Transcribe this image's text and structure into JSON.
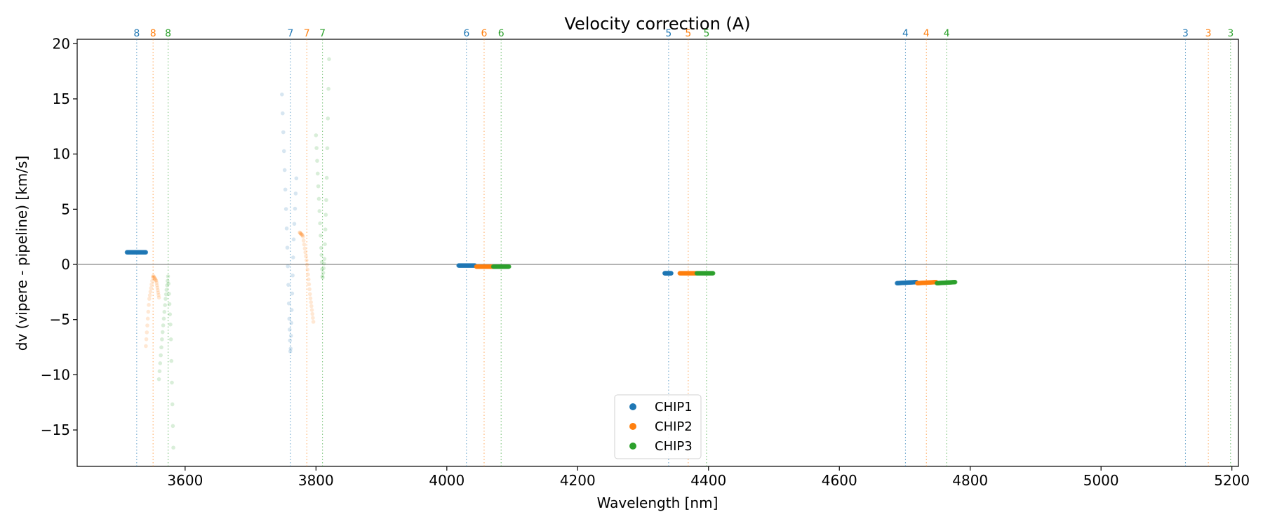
{
  "chart_data": {
    "type": "scatter",
    "title": "Velocity correction (A)",
    "xlabel": "Wavelength [nm]",
    "ylabel": "dv (vipere - pipeline) [km/s]",
    "xlim": [
      3435,
      5210
    ],
    "ylim": [
      -18.3,
      20.4
    ],
    "xticks": [
      3600,
      3800,
      4000,
      4200,
      4400,
      4600,
      4800,
      5000,
      5200
    ],
    "yticks": [
      20,
      15,
      10,
      5,
      0,
      -5,
      -10,
      -15
    ],
    "hline_y": 0,
    "legend_position": "lower center",
    "series": [
      {
        "name": "CHIP1",
        "color": "#1f77b4",
        "order_markers": [
          {
            "order": "8",
            "x": 3526
          },
          {
            "order": "7",
            "x": 3761
          },
          {
            "order": "6",
            "x": 4030
          },
          {
            "order": "5",
            "x": 4339
          },
          {
            "order": "4",
            "x": 4701
          },
          {
            "order": "3",
            "x": 5129
          }
        ],
        "segments": [
          {
            "x": [
              3511,
              3540
            ],
            "y": [
              1.1,
              1.1
            ],
            "style": "dense"
          },
          {
            "x": [
              3748,
              3752,
              3756,
              3759,
              3761,
              3763,
              3766,
              3770
            ],
            "y": [
              15.4,
              8.8,
              2.0,
              -4.5,
              -8.3,
              -3.8,
              2.5,
              7.8
            ],
            "style": "faint"
          },
          {
            "x": [
              4018,
              4043
            ],
            "y": [
              -0.1,
              -0.1
            ],
            "style": "dense"
          },
          {
            "x": [
              4333,
              4343
            ],
            "y": [
              -0.8,
              -0.8
            ],
            "style": "dense"
          },
          {
            "x": [
              4688,
              4718
            ],
            "y": [
              -1.7,
              -1.6
            ],
            "style": "dense"
          }
        ]
      },
      {
        "name": "CHIP2",
        "color": "#ff7f0e",
        "order_markers": [
          {
            "order": "8",
            "x": 3551
          },
          {
            "order": "7",
            "x": 3786
          },
          {
            "order": "6",
            "x": 4057
          },
          {
            "order": "5",
            "x": 4369
          },
          {
            "order": "4",
            "x": 4733
          },
          {
            "order": "3",
            "x": 5164
          }
        ],
        "segments": [
          {
            "x": [
              3540,
              3545,
              3551,
              3556,
              3560
            ],
            "y": [
              -7.4,
              -3.2,
              -1.0,
              -1.5,
              -3.0
            ],
            "style": "faint"
          },
          {
            "x": [
              3775,
              3780,
              3786,
              3791,
              3796
            ],
            "y": [
              2.9,
              2.6,
              0.2,
              -2.8,
              -5.2
            ],
            "style": "faint"
          },
          {
            "x": [
              4045,
              4070
            ],
            "y": [
              -0.2,
              -0.2
            ],
            "style": "dense"
          },
          {
            "x": [
              4356,
              4381
            ],
            "y": [
              -0.8,
              -0.8
            ],
            "style": "dense"
          },
          {
            "x": [
              4719,
              4748
            ],
            "y": [
              -1.7,
              -1.6
            ],
            "style": "dense"
          }
        ]
      },
      {
        "name": "CHIP3",
        "color": "#2ca02c",
        "order_markers": [
          {
            "order": "8",
            "x": 3574
          },
          {
            "order": "7",
            "x": 3810
          },
          {
            "order": "6",
            "x": 4083
          },
          {
            "order": "5",
            "x": 4397
          },
          {
            "order": "4",
            "x": 4764
          },
          {
            "order": "3",
            "x": 5198
          }
        ],
        "segments": [
          {
            "x": [
              3560,
              3565,
              3570,
              3574,
              3578,
              3582
            ],
            "y": [
              -10.4,
              -6.5,
              -3.2,
              -1.0,
              -6.0,
              -16.6
            ],
            "style": "faint"
          },
          {
            "x": [
              3800,
              3804,
              3808,
              3810,
              3813,
              3816,
              3820
            ],
            "y": [
              11.7,
              6.5,
              1.5,
              -1.4,
              0.5,
              6.5,
              18.6
            ],
            "style": "faint"
          },
          {
            "x": [
              4071,
              4095
            ],
            "y": [
              -0.2,
              -0.2
            ],
            "style": "dense"
          },
          {
            "x": [
              4382,
              4407
            ],
            "y": [
              -0.8,
              -0.8
            ],
            "style": "dense"
          },
          {
            "x": [
              4749,
              4777
            ],
            "y": [
              -1.7,
              -1.6
            ],
            "style": "dense"
          }
        ]
      }
    ]
  }
}
